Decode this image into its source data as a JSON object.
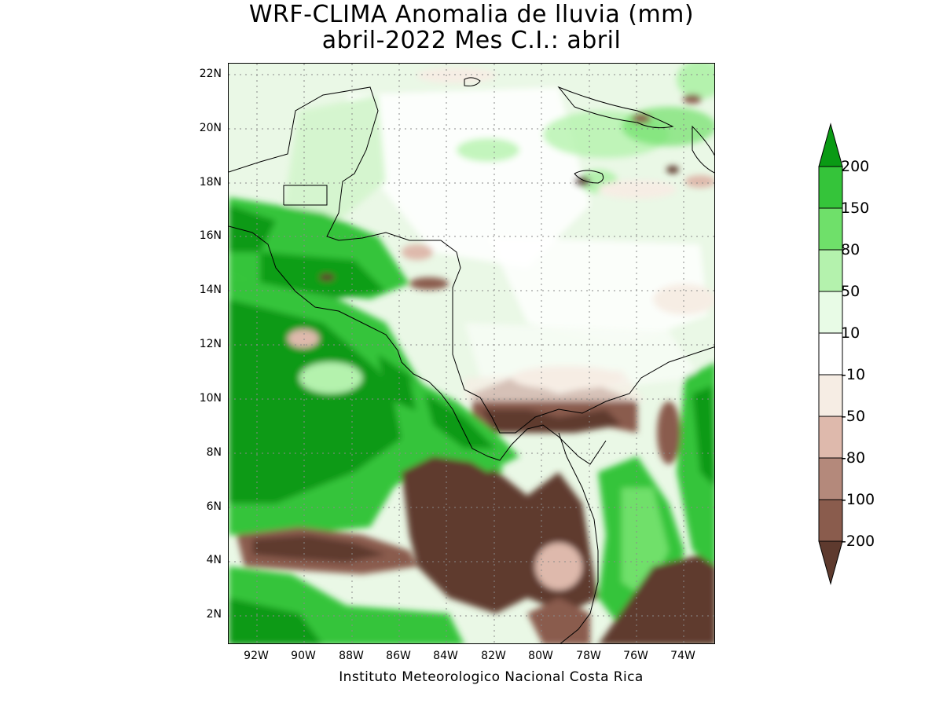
{
  "title": {
    "line1": "WRF-CLIMA Anomalia de lluvia (mm)",
    "line2": "abril-2022 Mes C.I.: abril"
  },
  "credit": "Instituto Meteorologico Nacional Costa Rica",
  "axes": {
    "lat_labels": [
      "22N",
      "20N",
      "18N",
      "16N",
      "14N",
      "12N",
      "10N",
      "8N",
      "6N",
      "4N",
      "2N"
    ],
    "lon_labels": [
      "92W",
      "90W",
      "88W",
      "86W",
      "84W",
      "82W",
      "80W",
      "78W",
      "76W",
      "74W"
    ],
    "lat_range": [
      1,
      22.5
    ],
    "lon_range": [
      -93,
      -72.6
    ],
    "grid": "dotted"
  },
  "colorbar": {
    "labels": [
      "200",
      "150",
      "80",
      "50",
      "10",
      "-10",
      "-50",
      "-80",
      "-100",
      "-200"
    ],
    "colors": [
      "#0a9a14",
      "#35c43a",
      "#6fe06a",
      "#b4f2ad",
      "#e8fbe6",
      "#ffffff",
      "#f6ede4",
      "#deb9ac",
      "#b4897b",
      "#8a5c4d",
      "#5e3a2e"
    ]
  },
  "palette": {
    "ocean_base": "#eaf8e6",
    "light_green": "#b4f2ad",
    "mid_green": "#6fe06a",
    "green": "#35c43a",
    "dark_green": "#0a9a14",
    "beige": "#f6ede4",
    "tan": "#deb9ac",
    "brown": "#b4897b",
    "dark_brown": "#5e3a2e"
  }
}
